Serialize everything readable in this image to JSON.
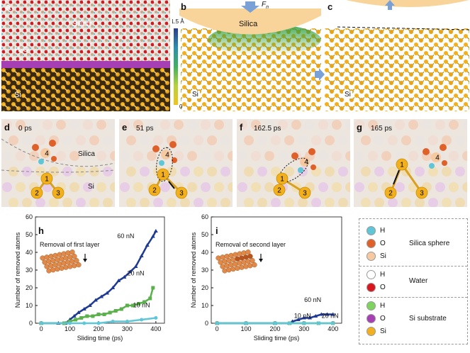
{
  "panels": {
    "a": {
      "label": "a",
      "silica": "Silica",
      "water": "H₂O",
      "si": "Si"
    },
    "b": {
      "label": "b",
      "force": "F",
      "force_sub": "n",
      "silica": "Silica",
      "si": "Si",
      "colorbar_top": "1.5 Å",
      "colorbar_bottom": "0"
    },
    "c": {
      "label": "c",
      "si": "Si"
    },
    "d": {
      "label": "d",
      "time": "0 ps",
      "silica": "Silica",
      "si": "Si",
      "atoms": [
        "1",
        "2",
        "3",
        "4"
      ]
    },
    "e": {
      "label": "e",
      "time": "51 ps",
      "atoms": [
        "1",
        "2",
        "3",
        "4"
      ]
    },
    "f": {
      "label": "f",
      "time": "162.5 ps",
      "atoms": [
        "1",
        "2",
        "3",
        "4"
      ]
    },
    "g": {
      "label": "g",
      "time": "165 ps",
      "atoms": [
        "1",
        "2",
        "3",
        "4"
      ]
    }
  },
  "chart_data": [
    {
      "type": "line",
      "panel": "h",
      "annotation": "Removal of first layer",
      "xlabel": "Sliding time (ps)",
      "ylabel": "Number of removed atoms",
      "xlim": [
        -20,
        430
      ],
      "ylim": [
        0,
        60
      ],
      "xticks": [
        0,
        100,
        200,
        300,
        400
      ],
      "yticks": [
        0,
        10,
        20,
        30,
        40,
        50,
        60
      ],
      "series": [
        {
          "name": "60 nN",
          "color": "#1f3a93",
          "marker": "triangle",
          "x": [
            0,
            60,
            85,
            100,
            115,
            130,
            150,
            170,
            190,
            210,
            230,
            250,
            270,
            290,
            310,
            330,
            350,
            370,
            390,
            400
          ],
          "y": [
            0,
            0,
            0,
            2,
            4,
            6,
            8,
            10,
            13,
            15,
            17,
            20,
            24,
            26,
            29,
            32,
            38,
            44,
            49,
            52
          ]
        },
        {
          "name": "20 nN",
          "color": "#5ab04a",
          "marker": "square",
          "x": [
            0,
            80,
            100,
            120,
            140,
            160,
            180,
            200,
            220,
            240,
            260,
            280,
            300,
            320,
            340,
            360,
            380,
            390
          ],
          "y": [
            0,
            0,
            1,
            2,
            3,
            4,
            4,
            5,
            5,
            6,
            7,
            8,
            10,
            10,
            11,
            12,
            14,
            20
          ]
        },
        {
          "name": "10 nN",
          "color": "#5fc6d8",
          "marker": "circle",
          "x": [
            0,
            100,
            150,
            200,
            250,
            300,
            350,
            400
          ],
          "y": [
            0,
            0,
            0,
            0,
            1,
            1,
            2,
            3
          ]
        }
      ]
    },
    {
      "type": "line",
      "panel": "i",
      "annotation": "Removal of second layer",
      "xlabel": "Sliding time (ps)",
      "ylabel": "Number of removed atoms",
      "xlim": [
        -20,
        430
      ],
      "ylim": [
        0,
        60
      ],
      "xticks": [
        0,
        100,
        200,
        300,
        400
      ],
      "yticks": [
        0,
        10,
        20,
        30,
        40,
        50,
        60
      ],
      "series": [
        {
          "name": "60 nN",
          "color": "#1f3a93",
          "marker": "triangle",
          "x": [
            0,
            100,
            200,
            250,
            260,
            280,
            300,
            320,
            340,
            360,
            380,
            400
          ],
          "y": [
            0,
            0,
            0,
            0,
            1,
            2,
            3,
            3,
            4,
            5,
            5,
            5
          ]
        },
        {
          "name": "20 nN",
          "color": "#5ab04a",
          "marker": "square",
          "x": [
            0,
            100,
            200,
            250,
            300,
            350,
            400
          ],
          "y": [
            0,
            0,
            0,
            0,
            0,
            0,
            0
          ]
        },
        {
          "name": "10 nN",
          "color": "#5fc6d8",
          "marker": "circle",
          "x": [
            0,
            100,
            200,
            250,
            300,
            350,
            400
          ],
          "y": [
            0,
            0,
            0,
            0,
            0,
            0,
            0
          ]
        }
      ]
    }
  ],
  "legend": {
    "groups": [
      {
        "title": "Silica sphere",
        "items": [
          {
            "label": "H",
            "color": "#5fc6d8"
          },
          {
            "label": "O",
            "color": "#e0602a"
          },
          {
            "label": "Si",
            "color": "#f6c9a0"
          }
        ]
      },
      {
        "title": "Water",
        "items": [
          {
            "label": "H",
            "color": "#ffffff"
          },
          {
            "label": "O",
            "color": "#d9161e"
          }
        ]
      },
      {
        "title": "Si substrate",
        "items": [
          {
            "label": "H",
            "color": "#7ed35f"
          },
          {
            "label": "O",
            "color": "#a63fb3"
          },
          {
            "label": "Si",
            "color": "#f2b01e"
          }
        ]
      }
    ]
  }
}
